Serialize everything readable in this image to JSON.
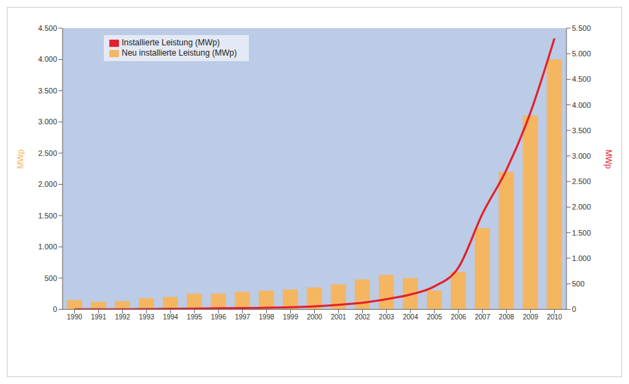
{
  "chart_data": {
    "type": "bar",
    "y_label": "MWp",
    "y2_label": "MWp",
    "categories": [
      "1990",
      "1991",
      "1992",
      "1993",
      "1994",
      "1995",
      "1996",
      "1997",
      "1998",
      "1999",
      "2000",
      "2001",
      "2002",
      "2003",
      "2004",
      "2005",
      "2006",
      "2007",
      "2008",
      "2009",
      "2010"
    ],
    "series": [
      {
        "name": "Neu installierte Leistung (MWp)",
        "type": "bar",
        "color": "#f5b661",
        "values": [
          150,
          120,
          130,
          180,
          200,
          250,
          250,
          280,
          300,
          320,
          350,
          400,
          480,
          550,
          500,
          300,
          600,
          1300,
          2200,
          3100,
          4000
        ]
      },
      {
        "name": "Installierte Leistung (MWp)",
        "type": "line",
        "axis": "y2",
        "color": "#e3202b",
        "values": [
          0,
          0,
          0,
          5,
          10,
          15,
          20,
          25,
          30,
          40,
          60,
          90,
          130,
          200,
          290,
          450,
          820,
          1870,
          2730,
          3850,
          5300
        ]
      }
    ],
    "ylim": [
      0,
      4500
    ],
    "yticks": [
      0,
      500,
      {
        "value": 1000,
        "label": "1.000"
      },
      {
        "value": 1500,
        "label": "1.500"
      },
      {
        "value": 2000,
        "label": "2.000"
      },
      {
        "value": 2500,
        "label": "2.500"
      },
      {
        "value": 3000,
        "label": "3.000"
      },
      {
        "value": 3500,
        "label": "3.500"
      },
      {
        "value": 4000,
        "label": "4.000"
      },
      {
        "value": 4500,
        "label": "4.500"
      }
    ],
    "y2lim": [
      0,
      5500
    ],
    "y2ticks": [
      0,
      500,
      {
        "value": 1000,
        "label": "1.000"
      },
      {
        "value": 1500,
        "label": "1.500"
      },
      {
        "value": 2000,
        "label": "2.000"
      },
      {
        "value": 2500,
        "label": "2.500"
      },
      {
        "value": 3000,
        "label": "3.000"
      },
      {
        "value": 3500,
        "label": "3.500"
      },
      {
        "value": 4000,
        "label": "4.000"
      },
      {
        "value": 4500,
        "label": "4.500"
      },
      {
        "value": 5000,
        "label": "5.000"
      },
      {
        "value": 5500,
        "label": "5.500"
      }
    ],
    "grid": false,
    "legend": "top-left"
  }
}
